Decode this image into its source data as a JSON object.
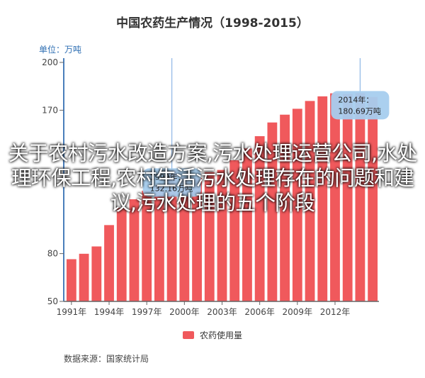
{
  "title": "中国农药生产情况（1998-2015）",
  "unit": "单位：万吨",
  "source": "数据来源：国家统计局",
  "overlay": "关于农村污水改造方案,污水处理运营公司,水处理环保工程,农村生活污水处理存在的问题和建议,污水处理的五个阶段",
  "colors": {
    "bar": "#f0595c",
    "axis": "#4a7ebb",
    "crosshair": "#8fb7e6",
    "tooltip_bg": "#a6cdee"
  },
  "tooltips": [
    {
      "title": "2014年：",
      "value": "180.69万吨"
    },
    {
      "title": "1999年：",
      "value": "132.16万吨"
    }
  ],
  "chart_data": {
    "type": "bar",
    "title": "中国农药生产情况（1998-2015）",
    "ylabel": "单位：万吨",
    "xlabel": "",
    "ylim": [
      50,
      200
    ],
    "yticks": [
      50,
      80,
      170,
      200
    ],
    "xticks": [
      "1991年",
      "1994年",
      "1997年",
      "2000年",
      "2003年",
      "2006年",
      "2009年",
      "2012年"
    ],
    "legend": "bottom-center",
    "grid": false,
    "categories": [
      "1991年",
      "1992年",
      "1993年",
      "1994年",
      "1995年",
      "1996年",
      "1997年",
      "1998年",
      "1999年",
      "2000年",
      "2001年",
      "2002年",
      "2003年",
      "2004年",
      "2005年",
      "2006年",
      "2007年",
      "2008年",
      "2009年",
      "2010年",
      "2011年",
      "2012年",
      "2013年",
      "2014年",
      "2015年"
    ],
    "series": [
      {
        "name": "农药使用量",
        "values": [
          76.5,
          79.9,
          84.5,
          97.9,
          108.7,
          114.1,
          119.5,
          123.2,
          132.2,
          128.0,
          127.5,
          131.1,
          132.5,
          138.6,
          146.0,
          153.7,
          162.3,
          167.2,
          170.9,
          175.8,
          178.7,
          180.6,
          180.2,
          180.7,
          178.3
        ]
      }
    ]
  }
}
